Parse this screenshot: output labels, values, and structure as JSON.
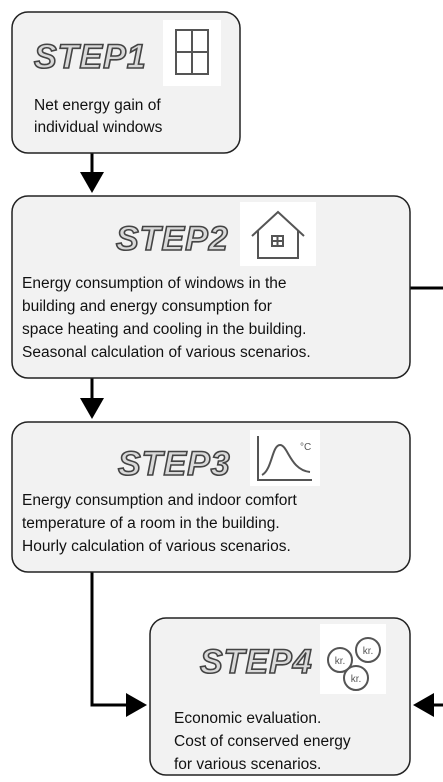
{
  "steps": [
    {
      "title": "STEP1",
      "lines": [
        "Net energy gain of",
        "individual windows"
      ]
    },
    {
      "title": "STEP2",
      "lines": [
        "Energy consumption of windows in the",
        "building and energy consumption for",
        "space heating and cooling in the building.",
        "Seasonal calculation of various scenarios."
      ]
    },
    {
      "title": "STEP3",
      "lines": [
        "Energy consumption and indoor comfort",
        "temperature of a room in the building.",
        "Hourly calculation of various scenarios."
      ]
    },
    {
      "title": "STEP4",
      "lines": [
        "Economic evaluation.",
        "Cost of conserved energy",
        "for various scenarios."
      ]
    }
  ],
  "icons": {
    "step3_unit": "°C",
    "step4_coin": "kr."
  }
}
